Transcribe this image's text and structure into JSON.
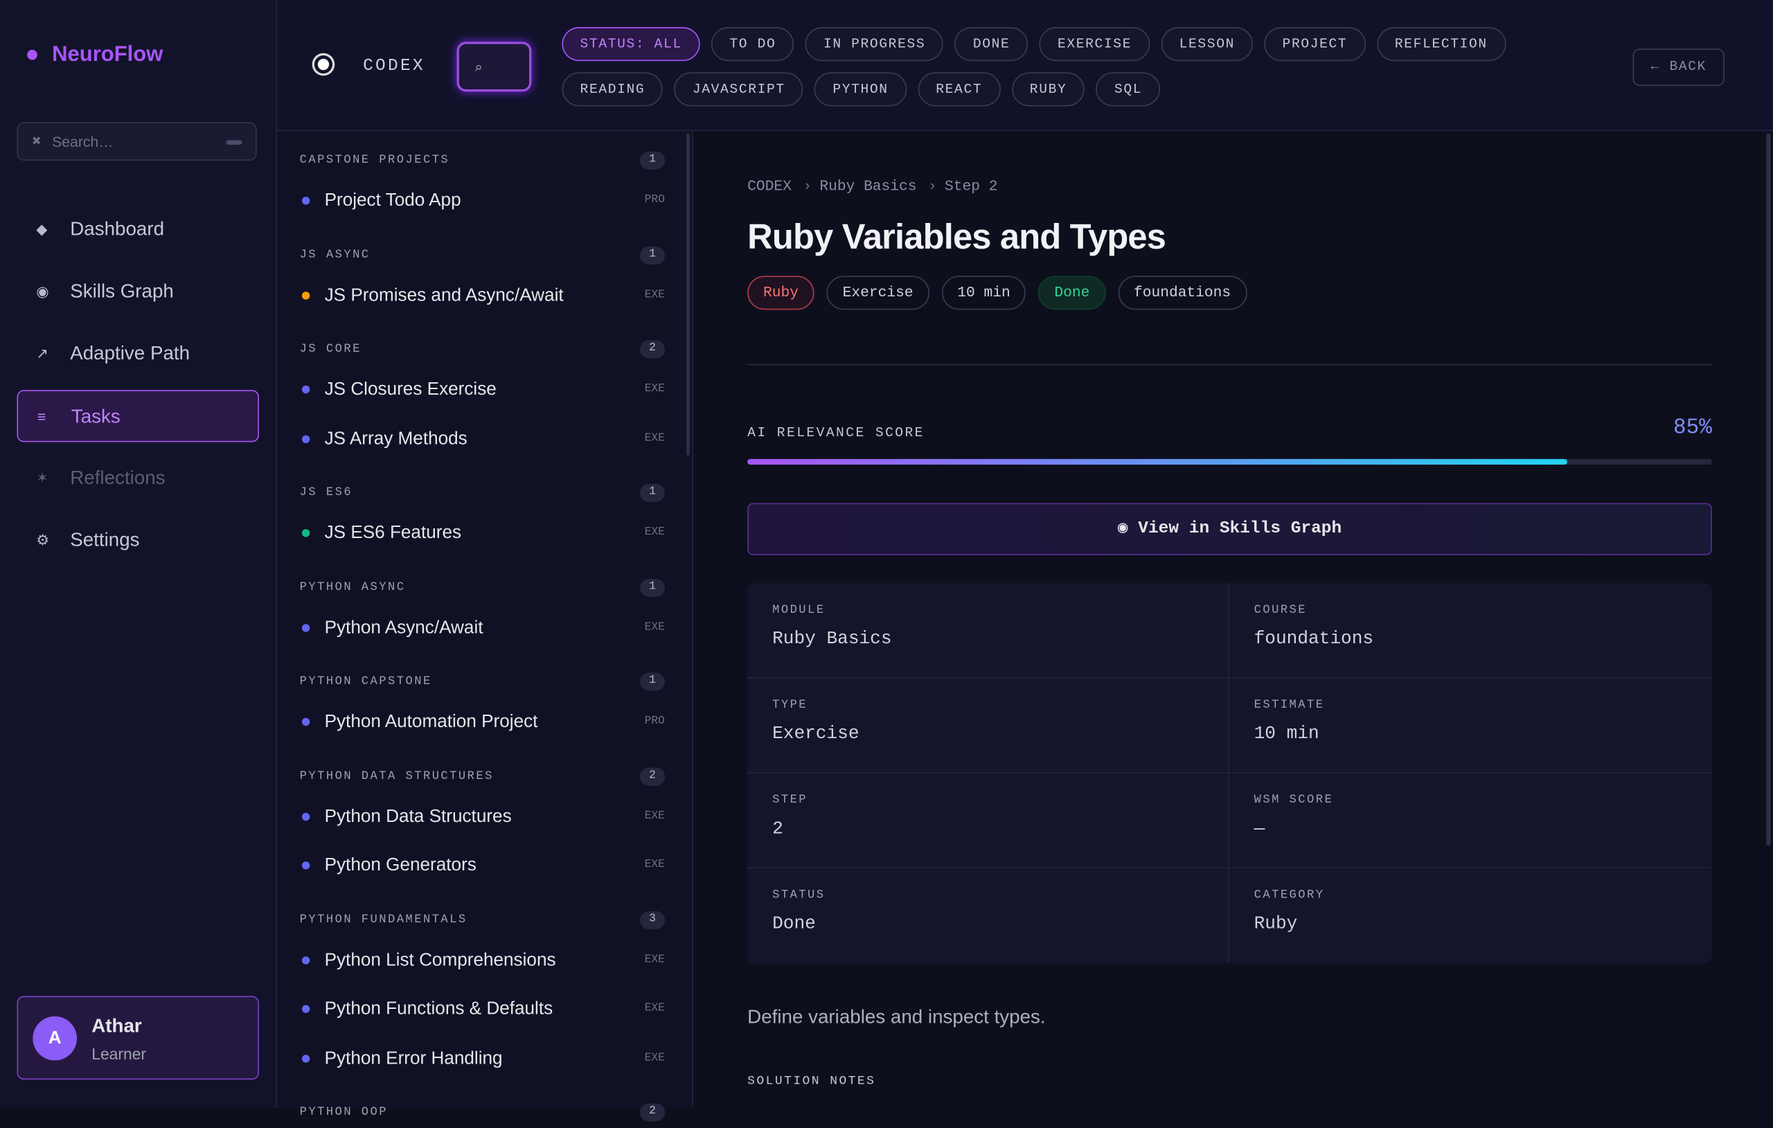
{
  "brand": "NeuroFlow",
  "sidebar": {
    "search_placeholder": "Search…",
    "nav": [
      "Dashboard",
      "Skills Graph",
      "Adaptive Path",
      "Tasks",
      "Reflections",
      "Settings"
    ],
    "active": "Tasks",
    "user": {
      "initial": "A",
      "name": "Athar",
      "role": "Learner"
    }
  },
  "topbar": {
    "section": "CODEX",
    "filters": [
      [
        "STATUS: ALL",
        "TO DO",
        "IN PROGRESS",
        "DONE",
        "EXERCISE",
        "LESSON",
        "PROJECT",
        "REFLECTION"
      ],
      [
        "READING",
        "JAVASCRIPT",
        "PYTHON",
        "REACT",
        "RUBY",
        "SQL"
      ]
    ],
    "back": "← BACK"
  },
  "task_groups": [
    {
      "name": "CAPSTONE PROJECTS",
      "count": "1",
      "items": [
        {
          "title": "Project Todo App",
          "tag": "PRO",
          "color": "#6366f1"
        }
      ]
    },
    {
      "name": "JS ASYNC",
      "count": "1",
      "items": [
        {
          "title": "JS Promises and Async/Await",
          "tag": "EXE",
          "color": "#f59e0b"
        }
      ]
    },
    {
      "name": "JS CORE",
      "count": "2",
      "items": [
        {
          "title": "JS Closures Exercise",
          "tag": "EXE",
          "color": "#6366f1"
        },
        {
          "title": "JS Array Methods",
          "tag": "EXE",
          "color": "#6366f1"
        }
      ]
    },
    {
      "name": "JS ES6",
      "count": "1",
      "items": [
        {
          "title": "JS ES6 Features",
          "tag": "EXE",
          "color": "#10b981"
        }
      ]
    },
    {
      "name": "PYTHON ASYNC",
      "count": "1",
      "items": [
        {
          "title": "Python Async/Await",
          "tag": "EXE",
          "color": "#6366f1"
        }
      ]
    },
    {
      "name": "PYTHON CAPSTONE",
      "count": "1",
      "items": [
        {
          "title": "Python Automation Project",
          "tag": "PRO",
          "color": "#6366f1"
        }
      ]
    },
    {
      "name": "PYTHON DATA STRUCTURES",
      "count": "2",
      "items": [
        {
          "title": "Python Data Structures",
          "tag": "EXE",
          "color": "#6366f1"
        },
        {
          "title": "Python Generators",
          "tag": "EXE",
          "color": "#6366f1"
        }
      ]
    },
    {
      "name": "PYTHON FUNDAMENTALS",
      "count": "3",
      "items": [
        {
          "title": "Python List Comprehensions",
          "tag": "EXE",
          "color": "#6366f1"
        },
        {
          "title": "Python Functions & Defaults",
          "tag": "EXE",
          "color": "#6366f1"
        },
        {
          "title": "Python Error Handling",
          "tag": "EXE",
          "color": "#6366f1"
        }
      ]
    },
    {
      "name": "PYTHON OOP",
      "count": "2",
      "items": []
    }
  ],
  "detail": {
    "breadcrumb": [
      "CODEX",
      "Ruby Basics",
      "Step 2"
    ],
    "title": "Ruby Variables and Types",
    "tags": [
      "Ruby",
      "Exercise",
      "10 min",
      "Done",
      "foundations"
    ],
    "score_label": "AI RELEVANCE SCORE",
    "score": 85,
    "score_text": "85%",
    "graph_button": "View in Skills Graph",
    "fields": [
      {
        "label": "MODULE",
        "value": "Ruby Basics"
      },
      {
        "label": "COURSE",
        "value": "foundations"
      },
      {
        "label": "TYPE",
        "value": "Exercise"
      },
      {
        "label": "ESTIMATE",
        "value": "10 min"
      },
      {
        "label": "STEP",
        "value": "2"
      },
      {
        "label": "WSM SCORE",
        "value": "—"
      },
      {
        "label": "STATUS",
        "value": "Done"
      },
      {
        "label": "CATEGORY",
        "value": "Ruby"
      }
    ],
    "description": "Define variables and inspect types.",
    "notes_label": "SOLUTION NOTES"
  }
}
